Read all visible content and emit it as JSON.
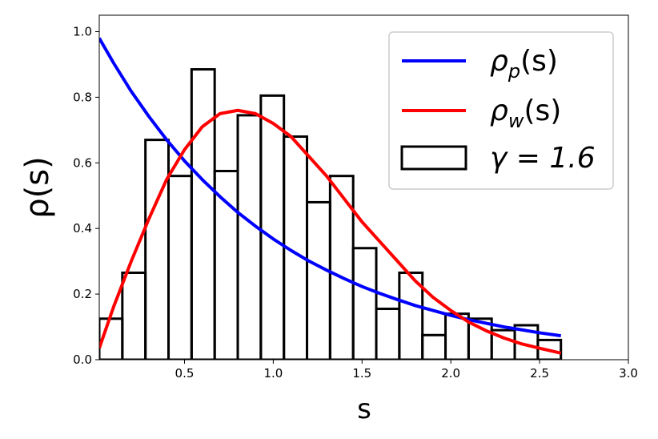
{
  "chart_data": {
    "type": "line",
    "xlabel": "s",
    "ylabel": "ρ(s)",
    "xlim": [
      0.02,
      3.0
    ],
    "ylim": [
      0.0,
      1.05
    ],
    "xticks": [
      0.5,
      1.0,
      1.5,
      2.0,
      2.5,
      3.0
    ],
    "xtick_labels": [
      "0.5",
      "1.0",
      "1.5",
      "2.0",
      "2.5",
      "3.0"
    ],
    "yticks": [
      0.0,
      0.2,
      0.4,
      0.6,
      0.8,
      1.0
    ],
    "ytick_labels": [
      "0.0",
      "0.2",
      "0.4",
      "0.6",
      "0.8",
      "1.0"
    ],
    "grid": false,
    "legend": {
      "placement": "top-right",
      "entries": [
        {
          "label_base": "ρ",
          "label_sub": "p",
          "label_tail": "(s)",
          "color": "#0000ff",
          "kind": "line"
        },
        {
          "label_base": "ρ",
          "label_sub": "w",
          "label_tail": "(s)",
          "color": "#ff0000",
          "kind": "line"
        },
        {
          "label_base": "γ = 1.6",
          "label_sub": "",
          "label_tail": "",
          "color": "#000000",
          "kind": "box"
        }
      ]
    },
    "series": [
      {
        "kind": "line",
        "color": "#0000ff",
        "x": [
          0.02,
          0.1,
          0.2,
          0.3,
          0.4,
          0.5,
          0.6,
          0.7,
          0.8,
          0.9,
          1.0,
          1.1,
          1.2,
          1.3,
          1.4,
          1.5,
          1.6,
          1.7,
          1.8,
          1.9,
          2.0,
          2.1,
          2.2,
          2.3,
          2.4,
          2.5,
          2.62
        ],
        "y": [
          0.98,
          0.905,
          0.818,
          0.741,
          0.67,
          0.606,
          0.549,
          0.497,
          0.449,
          0.407,
          0.368,
          0.333,
          0.301,
          0.273,
          0.247,
          0.223,
          0.202,
          0.183,
          0.165,
          0.15,
          0.135,
          0.122,
          0.111,
          0.1,
          0.091,
          0.082,
          0.073
        ]
      },
      {
        "kind": "line",
        "color": "#ff0000",
        "x": [
          0.02,
          0.1,
          0.2,
          0.3,
          0.4,
          0.5,
          0.6,
          0.7,
          0.8,
          0.9,
          1.0,
          1.1,
          1.2,
          1.3,
          1.4,
          1.5,
          1.6,
          1.7,
          1.8,
          1.9,
          2.0,
          2.1,
          2.2,
          2.3,
          2.4,
          2.5,
          2.62
        ],
        "y": [
          0.035,
          0.16,
          0.3,
          0.43,
          0.55,
          0.64,
          0.71,
          0.75,
          0.76,
          0.75,
          0.72,
          0.68,
          0.62,
          0.56,
          0.49,
          0.42,
          0.36,
          0.3,
          0.24,
          0.19,
          0.15,
          0.115,
          0.088,
          0.066,
          0.048,
          0.035,
          0.02
        ]
      },
      {
        "kind": "histogram",
        "color": "#000000",
        "bin_edges": [
          0.02,
          0.15,
          0.28,
          0.41,
          0.54,
          0.67,
          0.8,
          0.93,
          1.06,
          1.19,
          1.32,
          1.45,
          1.58,
          1.71,
          1.84,
          1.97,
          2.1,
          2.23,
          2.36,
          2.49,
          2.62
        ],
        "values": [
          0.125,
          0.265,
          0.67,
          0.56,
          0.885,
          0.575,
          0.745,
          0.805,
          0.68,
          0.48,
          0.56,
          0.34,
          0.155,
          0.265,
          0.075,
          0.14,
          0.125,
          0.09,
          0.105,
          0.06
        ]
      }
    ]
  }
}
